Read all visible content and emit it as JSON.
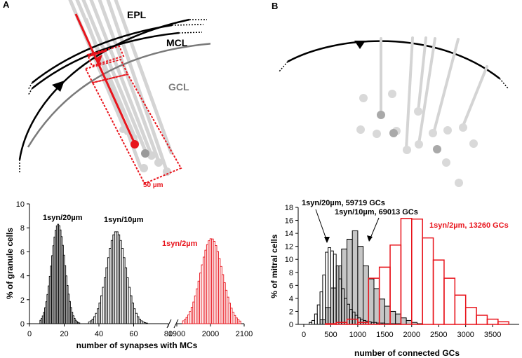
{
  "panels": {
    "a_letter": "A",
    "b_letter": "B"
  },
  "schematic_a": {
    "layer_epl": "EPL",
    "layer_mcl": "MCL",
    "layer_gcl": "GCL",
    "scale_bar": "50 µm",
    "colors": {
      "highlight": "#e8141c",
      "dendrite": "#d4d4d4",
      "layer_line": "#000000",
      "gcl_line": "#7a7a7a"
    }
  },
  "chart_data": [
    {
      "type": "bar",
      "subtype": "histogram",
      "ylabel": "% of granule cells",
      "xlabel": "number of synapses with MCs",
      "ylim": [
        0,
        10
      ],
      "yticks": [
        "0",
        "2",
        "4",
        "6",
        "8",
        "10"
      ],
      "xticks_left": [
        "0",
        "20",
        "40",
        "60",
        "80"
      ],
      "xticks_right": [
        "1900",
        "2000",
        "2100"
      ],
      "axis_break": true,
      "series": [
        {
          "name": "1syn/20µm",
          "label": "1syn/20µm",
          "color": "#000000",
          "mean": 16.5,
          "sd": 3.9,
          "peak": 8.3,
          "x_range": [
            6,
            29
          ],
          "segment": "left"
        },
        {
          "name": "1syn/10µm",
          "label": "1syn/10µm",
          "color": "#000000",
          "mean": 50,
          "sd": 5.5,
          "peak": 7.7,
          "x_range": [
            34,
            68
          ],
          "segment": "left"
        },
        {
          "name": "1syn/2µm",
          "label": "1syn/2µm",
          "color": "#e8141c",
          "mean": 2003,
          "sd": 32,
          "peak": 7.1,
          "x_range": [
            1917,
            2090
          ],
          "segment": "right"
        }
      ]
    },
    {
      "type": "bar",
      "subtype": "histogram",
      "ylabel": "% of mitral cells",
      "xlabel": "number of connected GCs",
      "ylim": [
        0,
        18
      ],
      "yticks": [
        "0",
        "2",
        "4",
        "6",
        "8",
        "10",
        "12",
        "14",
        "16",
        "18"
      ],
      "xticks": [
        "0",
        "500",
        "1000",
        "1500",
        "2000",
        "2500",
        "3000",
        "3500"
      ],
      "xlim": [
        0,
        3950
      ],
      "series": [
        {
          "name": "1syn/20µm, 59719 GCs",
          "label": "1syn/20µm, 59719 GCs",
          "color": "#000000",
          "fill": "none",
          "bin_width": 50,
          "bin_starts": [
            100,
            150,
            200,
            250,
            300,
            350,
            400,
            450,
            500,
            550,
            600,
            650,
            700,
            750,
            800,
            850,
            900,
            950,
            1000,
            1050,
            1100,
            1150,
            1200,
            1250,
            1300,
            1350,
            1400,
            1450,
            1500,
            1550,
            1600,
            1650,
            1700,
            1750
          ],
          "values": [
            0.3,
            0.6,
            1.6,
            3.0,
            5.0,
            7.6,
            11.1,
            11.8,
            11.3,
            10.8,
            9.0,
            7.0,
            5.5,
            4.0,
            3.1,
            2.3,
            1.9,
            1.4,
            1.0,
            0.8,
            0.6,
            0.5,
            0.4,
            0.3,
            0.3,
            0.2,
            0.2,
            0.2,
            0.1,
            0.1,
            0.1,
            0.1,
            0.1,
            0.1
          ]
        },
        {
          "name": "1syn/10µm, 69013 GCs",
          "label": "1syn/10µm, 69013 GCs",
          "color": "#000000",
          "fill": "#c6c6c6",
          "bin_width": 100,
          "bin_starts": [
            300,
            400,
            500,
            600,
            700,
            800,
            900,
            1000,
            1100,
            1200,
            1300,
            1400,
            1500,
            1600,
            1700,
            1800,
            1900,
            2000,
            2100
          ],
          "values": [
            0.7,
            2.6,
            5.6,
            9.0,
            11.6,
            13.1,
            14.4,
            12.0,
            9.0,
            7.0,
            5.5,
            3.9,
            2.8,
            2.0,
            1.6,
            1.0,
            0.6,
            0.3,
            0.1
          ]
        },
        {
          "name": "1syn/2µm, 13260 GCs",
          "label": "1syn/2µm, 13260 GCs",
          "color": "#e8141c",
          "fill": "none",
          "bin_width": 200,
          "bin_starts": [
            400,
            600,
            800,
            1000,
            1200,
            1400,
            1600,
            1800,
            2000,
            2200,
            2400,
            2600,
            2800,
            3000,
            3200,
            3400,
            3600
          ],
          "values": [
            0.1,
            0.3,
            0.8,
            0.3,
            7.1,
            8.8,
            12.2,
            16.3,
            16.2,
            13.3,
            9.9,
            7.1,
            4.5,
            2.6,
            1.4,
            0.8,
            0.4
          ]
        }
      ]
    }
  ]
}
